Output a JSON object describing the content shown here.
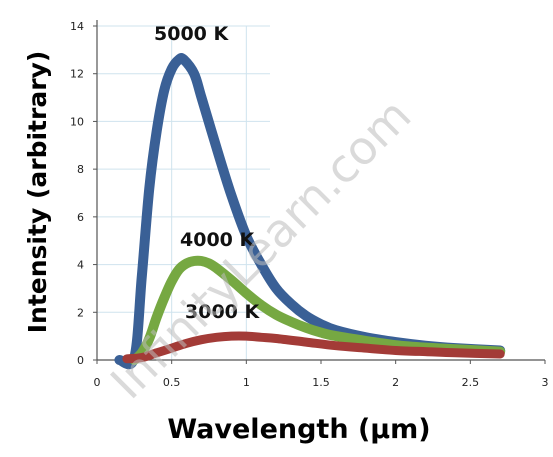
{
  "chart_data": {
    "type": "line",
    "xlabel": "Wavelength (μm)",
    "ylabel": "Intensity (arbitrary)",
    "xlim": [
      0,
      3
    ],
    "ylim": [
      0,
      14
    ],
    "xticks": [
      "0",
      "0.5",
      "1",
      "1.5",
      "2",
      "2.5",
      "3"
    ],
    "yticks": [
      "0",
      "2",
      "4",
      "6",
      "8",
      "10",
      "12",
      "14"
    ],
    "grid": true,
    "series": [
      {
        "name": "5000 K",
        "color": "#3a6096",
        "x": [
          0.15,
          0.25,
          0.3,
          0.35,
          0.4,
          0.45,
          0.5,
          0.55,
          0.58,
          0.65,
          0.7,
          0.8,
          0.9,
          1.0,
          1.1,
          1.2,
          1.3,
          1.4,
          1.5,
          1.6,
          1.8,
          2.0,
          2.2,
          2.4,
          2.7
        ],
        "y": [
          0,
          0.1,
          3.5,
          7.2,
          9.6,
          11.3,
          12.2,
          12.6,
          12.6,
          12.0,
          11.0,
          8.9,
          6.9,
          5.2,
          4.0,
          3.0,
          2.35,
          1.85,
          1.5,
          1.25,
          0.95,
          0.75,
          0.6,
          0.5,
          0.4
        ]
      },
      {
        "name": "4000 K",
        "color": "#76a842",
        "x": [
          0.25,
          0.3,
          0.35,
          0.4,
          0.45,
          0.5,
          0.55,
          0.6,
          0.65,
          0.7,
          0.75,
          0.8,
          0.9,
          1.0,
          1.1,
          1.2,
          1.3,
          1.4,
          1.5,
          1.6,
          1.8,
          2.0,
          2.2,
          2.5,
          2.7
        ],
        "y": [
          0,
          0.3,
          0.9,
          1.8,
          2.6,
          3.3,
          3.8,
          4.05,
          4.15,
          4.15,
          4.05,
          3.85,
          3.35,
          2.8,
          2.3,
          1.9,
          1.6,
          1.35,
          1.15,
          1.0,
          0.8,
          0.62,
          0.52,
          0.42,
          0.35
        ]
      },
      {
        "name": "3000 K",
        "color": "#a33b37",
        "x": [
          0.2,
          0.3,
          0.4,
          0.5,
          0.6,
          0.7,
          0.8,
          0.9,
          1.0,
          1.1,
          1.2,
          1.4,
          1.6,
          1.8,
          2.0,
          2.2,
          2.4,
          2.7
        ],
        "y": [
          0.05,
          0.1,
          0.3,
          0.5,
          0.7,
          0.85,
          0.95,
          1.0,
          1.0,
          0.95,
          0.9,
          0.75,
          0.6,
          0.5,
          0.4,
          0.35,
          0.3,
          0.25
        ]
      }
    ]
  },
  "labels": {
    "series_5000": "5000 K",
    "series_4000": "4000 K",
    "series_3000": "3000 K"
  },
  "watermark": "InfinityLearn.com"
}
